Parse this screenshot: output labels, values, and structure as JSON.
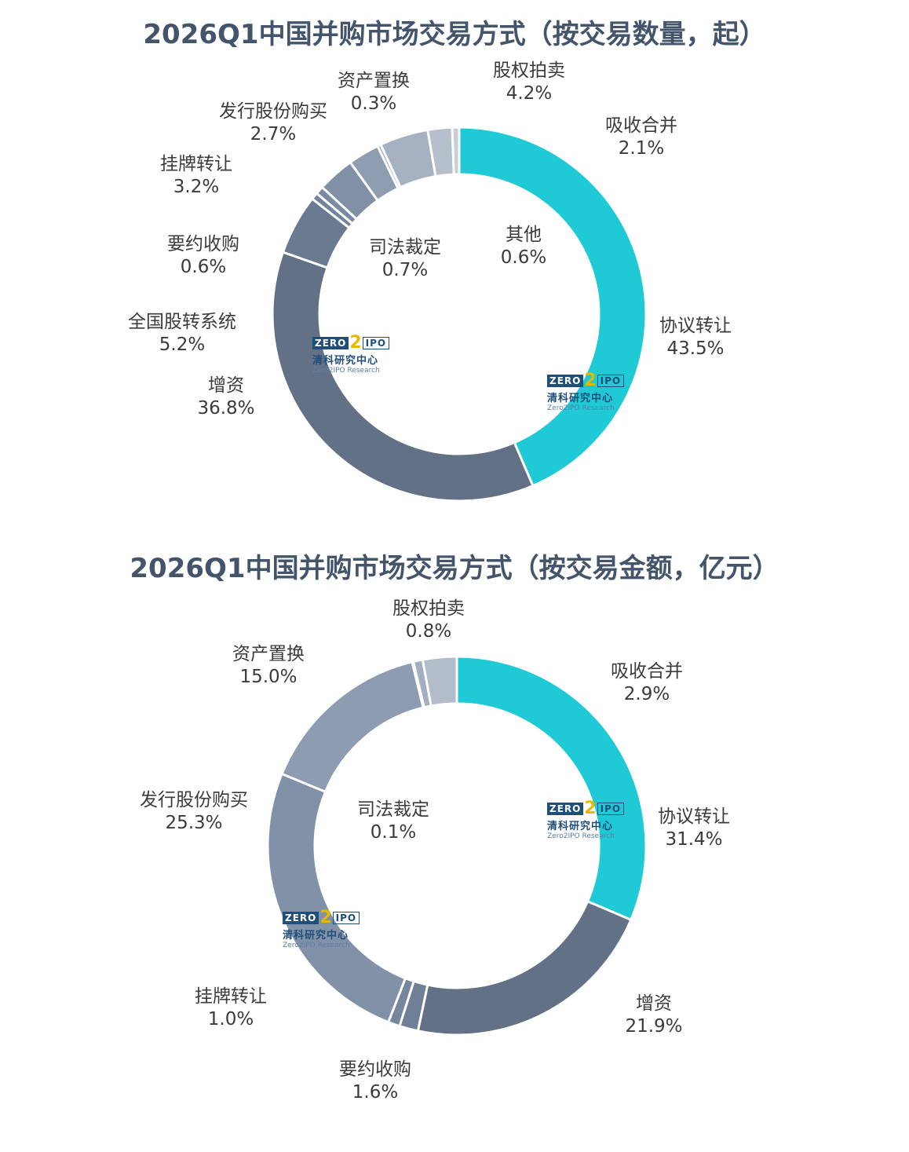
{
  "colors": {
    "title": "#44546a",
    "accent_cyan": "#1fcad6",
    "slate_dark": "#637186",
    "slate_mid": "#7b8aa1",
    "slate_light": "#93a2b7",
    "slate_pale": "#b3bdca",
    "slate_paler": "#cbd2db",
    "label": "#3b3b3b",
    "logo_blue": "#1f4e79",
    "logo_gold": "#e6b800"
  },
  "logo": {
    "zero": "ZERO",
    "two": "2",
    "ipo": "IPO",
    "cn": "清科研究中心",
    "en": "Zero2IPO Research"
  },
  "chart_data": [
    {
      "type": "pie",
      "title": "2026Q1中国并购市场交易方式（按交易数量，起）",
      "slices": [
        {
          "label": "协议转让",
          "value": 43.5,
          "display": "43.5%",
          "color": "#1fcad6"
        },
        {
          "label": "增资",
          "value": 36.8,
          "display": "36.8%",
          "color": "#637186"
        },
        {
          "label": "全国股转系统",
          "value": 5.2,
          "display": "5.2%",
          "color": "#6a7a90"
        },
        {
          "label": "要约收购",
          "value": 0.6,
          "display": "0.6%",
          "color": "#74849a"
        },
        {
          "label": "司法裁定",
          "value": 0.7,
          "display": "0.7%",
          "color": "#7a8aa0"
        },
        {
          "label": "挂牌转让",
          "value": 3.2,
          "display": "3.2%",
          "color": "#8190a6"
        },
        {
          "label": "发行股份购买",
          "value": 2.7,
          "display": "2.7%",
          "color": "#8f9db1"
        },
        {
          "label": "资产置换",
          "value": 0.3,
          "display": "0.3%",
          "color": "#9aa7ba"
        },
        {
          "label": "股权拍卖",
          "value": 4.2,
          "display": "4.2%",
          "color": "#a6b2c2"
        },
        {
          "label": "吸收合并",
          "value": 2.1,
          "display": "2.1%",
          "color": "#b6c0cd"
        },
        {
          "label": "其他",
          "value": 0.6,
          "display": "0.6%",
          "color": "#c6ced8"
        }
      ]
    },
    {
      "type": "pie",
      "title": "2026Q1中国并购市场交易方式（按交易金额，亿元）",
      "slices": [
        {
          "label": "协议转让",
          "value": 31.4,
          "display": "31.4%",
          "color": "#1fcad6"
        },
        {
          "label": "增资",
          "value": 21.9,
          "display": "21.9%",
          "color": "#637186"
        },
        {
          "label": "要约收购",
          "value": 1.6,
          "display": "1.6%",
          "color": "#6f7f96"
        },
        {
          "label": "挂牌转让",
          "value": 1.0,
          "display": "1.0%",
          "color": "#76869c"
        },
        {
          "label": "发行股份购买",
          "value": 25.3,
          "display": "25.3%",
          "color": "#8191a8"
        },
        {
          "label": "资产置换",
          "value": 15.0,
          "display": "15.0%",
          "color": "#8d9cb1"
        },
        {
          "label": "司法裁定",
          "value": 0.1,
          "display": "0.1%",
          "color": "#99a7ba"
        },
        {
          "label": "股权拍卖",
          "value": 0.8,
          "display": "0.8%",
          "color": "#a3afc0"
        },
        {
          "label": "吸收合并",
          "value": 2.9,
          "display": "2.9%",
          "color": "#b3bdca"
        }
      ]
    }
  ]
}
